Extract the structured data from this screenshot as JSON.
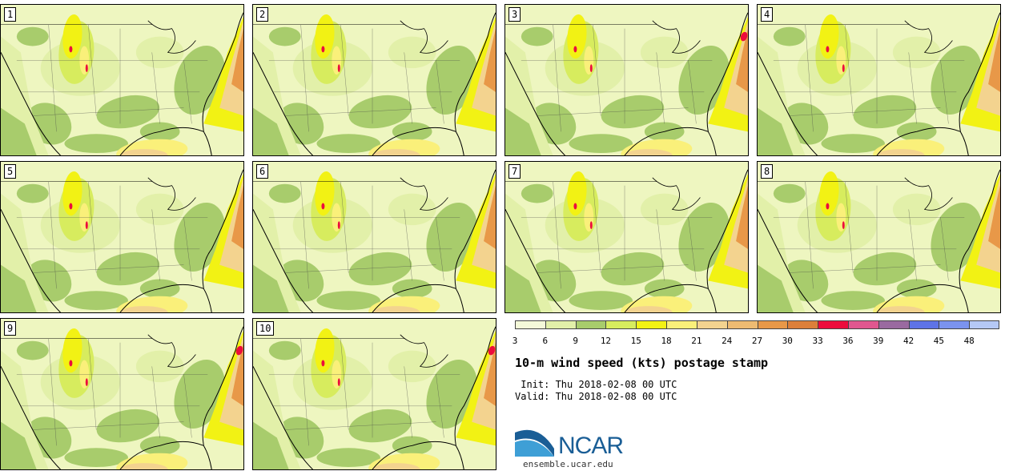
{
  "panels": [
    {
      "label": "1"
    },
    {
      "label": "2"
    },
    {
      "label": "3"
    },
    {
      "label": "4"
    },
    {
      "label": "5"
    },
    {
      "label": "6"
    },
    {
      "label": "7"
    },
    {
      "label": "8"
    },
    {
      "label": "9"
    },
    {
      "label": "10"
    }
  ],
  "legend": {
    "ticks": [
      "3",
      "6",
      "9",
      "12",
      "15",
      "18",
      "21",
      "24",
      "27",
      "30",
      "33",
      "36",
      "39",
      "42",
      "45",
      "48"
    ],
    "colors": [
      "#f4f9d9",
      "#e2f0a9",
      "#a8cc6c",
      "#d7ec5e",
      "#f2f214",
      "#faf07a",
      "#f3d38f",
      "#eebb72",
      "#e89848",
      "#dc7f3a",
      "#ec0c3c",
      "#e0578f",
      "#9a6aa0",
      "#5e73e6",
      "#7b93ef",
      "#b5c8f5"
    ]
  },
  "title": "10-m wind speed (kts) postage stamp",
  "init": " Init: Thu 2018-02-08 00 UTC",
  "valid": "Valid: Thu 2018-02-08 00 UTC",
  "logo": {
    "text": "NCAR"
  },
  "site": "ensemble.ucar.edu"
}
